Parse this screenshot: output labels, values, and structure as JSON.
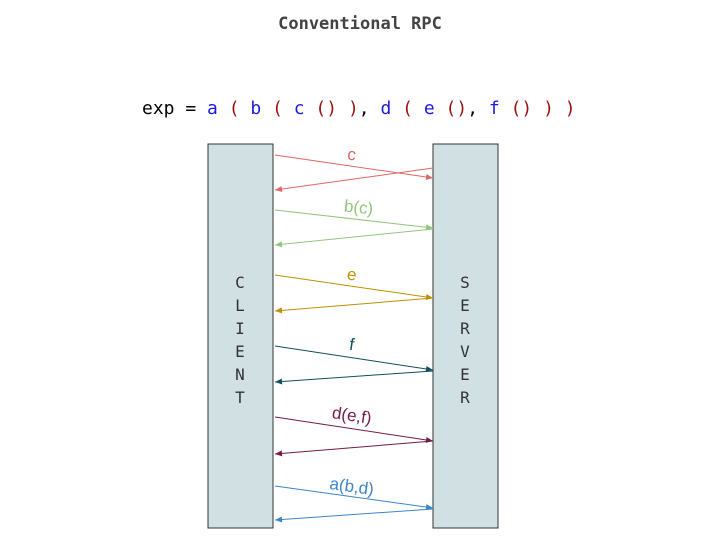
{
  "title": "Conventional RPC",
  "expression": {
    "tokens": [
      {
        "t": "exp",
        "k": "op"
      },
      {
        "t": " = ",
        "k": "op"
      },
      {
        "t": "a",
        "k": "fn"
      },
      {
        "t": " ( ",
        "k": "pr"
      },
      {
        "t": "b",
        "k": "fn"
      },
      {
        "t": " ( ",
        "k": "pr"
      },
      {
        "t": "c",
        "k": "fn"
      },
      {
        "t": " () ",
        "k": "pr"
      },
      {
        "t": ")",
        "k": "pr"
      },
      {
        "t": ", ",
        "k": "op"
      },
      {
        "t": "d",
        "k": "fn"
      },
      {
        "t": " ( ",
        "k": "pr"
      },
      {
        "t": "e",
        "k": "fn"
      },
      {
        "t": " ()",
        "k": "pr"
      },
      {
        "t": ", ",
        "k": "op"
      },
      {
        "t": "f",
        "k": "fn"
      },
      {
        "t": " () ",
        "k": "pr"
      },
      {
        "t": ") )",
        "k": "pr"
      }
    ]
  },
  "lanes": {
    "client": {
      "letters": [
        "C",
        "L",
        "I",
        "E",
        "N",
        "T"
      ]
    },
    "server": {
      "letters": [
        "S",
        "E",
        "R",
        "V",
        "E",
        "R"
      ]
    },
    "fill_color": "#d0e0e3",
    "border_color": "#333333"
  },
  "calls": [
    {
      "label": "c",
      "color": "#e06666"
    },
    {
      "label": "b(c)",
      "color": "#93c47d"
    },
    {
      "label": "e",
      "color": "#bf9000"
    },
    {
      "label": "f",
      "color": "#134f5c"
    },
    {
      "label": "d(e,f)",
      "color": "#741b47"
    },
    {
      "label": "a(b,d)",
      "color": "#3d85c6"
    }
  ]
}
